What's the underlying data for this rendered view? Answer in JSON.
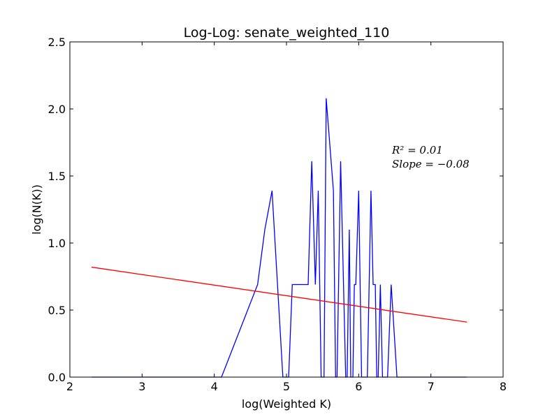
{
  "chart_data": {
    "type": "line",
    "title": "Log-Log: senate_weighted_110",
    "xlabel": "log(Weighted K)",
    "ylabel": "log(N(K))",
    "xlim": [
      2,
      8
    ],
    "ylim": [
      0,
      2.5
    ],
    "xticks": [
      "2",
      "3",
      "4",
      "5",
      "6",
      "7",
      "8"
    ],
    "yticks": [
      "0.0",
      "0.5",
      "1.0",
      "1.5",
      "2.0",
      "2.5"
    ],
    "grid": false,
    "annotations": [
      "R^2 = 0.01",
      "Slope = -0.08"
    ],
    "annotation_display": [
      "R² = 0.01",
      "Slope = −0.08"
    ],
    "series": [
      {
        "color": "#0000ff",
        "points": [
          [
            2.3,
            0.0
          ],
          [
            4.1,
            0.0
          ],
          [
            4.6,
            0.69
          ],
          [
            4.7,
            1.1
          ],
          [
            4.8,
            1.39
          ],
          [
            4.95,
            0.0
          ],
          [
            5.03,
            0.0
          ],
          [
            5.08,
            0.69
          ],
          [
            5.3,
            0.69
          ],
          [
            5.35,
            1.61
          ],
          [
            5.4,
            0.69
          ],
          [
            5.44,
            1.39
          ],
          [
            5.48,
            0.0
          ],
          [
            5.52,
            0.0
          ],
          [
            5.55,
            2.08
          ],
          [
            5.65,
            1.39
          ],
          [
            5.68,
            0.0
          ],
          [
            5.7,
            0.0
          ],
          [
            5.75,
            1.61
          ],
          [
            5.82,
            0.0
          ],
          [
            5.84,
            0.0
          ],
          [
            5.87,
            1.1
          ],
          [
            5.89,
            0.0
          ],
          [
            5.92,
            0.0
          ],
          [
            5.94,
            0.69
          ],
          [
            5.96,
            0.69
          ],
          [
            6.0,
            1.39
          ],
          [
            6.04,
            0.0
          ],
          [
            6.12,
            0.0
          ],
          [
            6.17,
            1.39
          ],
          [
            6.2,
            0.69
          ],
          [
            6.23,
            0.69
          ],
          [
            6.25,
            0.0
          ],
          [
            6.27,
            0.0
          ],
          [
            6.3,
            0.69
          ],
          [
            6.33,
            0.0
          ],
          [
            6.4,
            0.0
          ],
          [
            6.45,
            0.69
          ],
          [
            6.53,
            0.0
          ],
          [
            7.5,
            0.0
          ]
        ]
      },
      {
        "color": "#ff0000",
        "points": [
          [
            2.3,
            0.82
          ],
          [
            7.5,
            0.41
          ]
        ]
      }
    ]
  }
}
